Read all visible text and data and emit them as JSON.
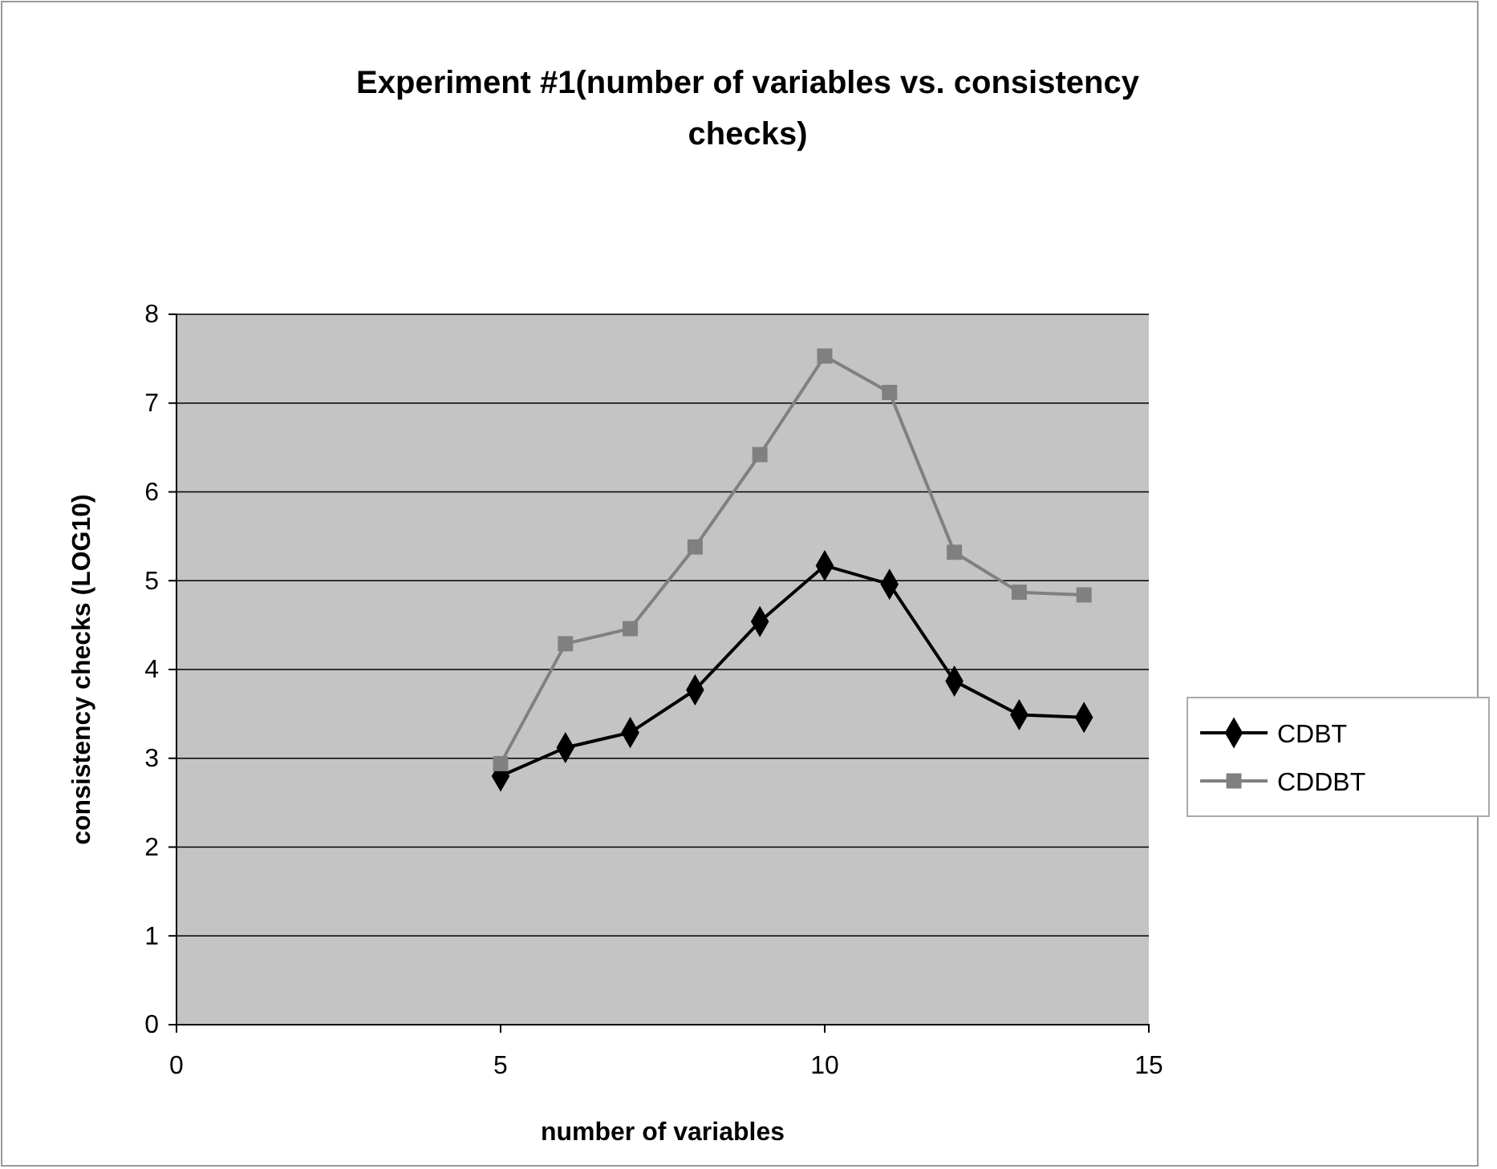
{
  "chart_data": {
    "type": "line",
    "title": "Experiment #1(number of variables vs. consistency checks)",
    "xlabel": "number of variables",
    "ylabel": "consistency checks (LOG10)",
    "x": [
      5,
      6,
      7,
      8,
      9,
      10,
      11,
      12,
      13,
      14
    ],
    "series": [
      {
        "name": "CDBT",
        "color": "#000000",
        "marker": "diamond",
        "values": [
          2.8,
          3.12,
          3.29,
          3.77,
          4.54,
          5.17,
          4.96,
          3.87,
          3.49,
          3.46
        ]
      },
      {
        "name": "CDDBT",
        "color": "#808080",
        "marker": "square",
        "values": [
          2.94,
          4.29,
          4.46,
          5.38,
          6.42,
          7.53,
          7.12,
          5.32,
          4.87,
          4.84
        ]
      }
    ],
    "xlim": [
      0,
      15
    ],
    "xticks": [
      0,
      5,
      10,
      15
    ],
    "ylim": [
      0,
      8
    ],
    "yticks": [
      0,
      1,
      2,
      3,
      4,
      5,
      6,
      7,
      8
    ],
    "grid": "y",
    "legend": "right"
  }
}
